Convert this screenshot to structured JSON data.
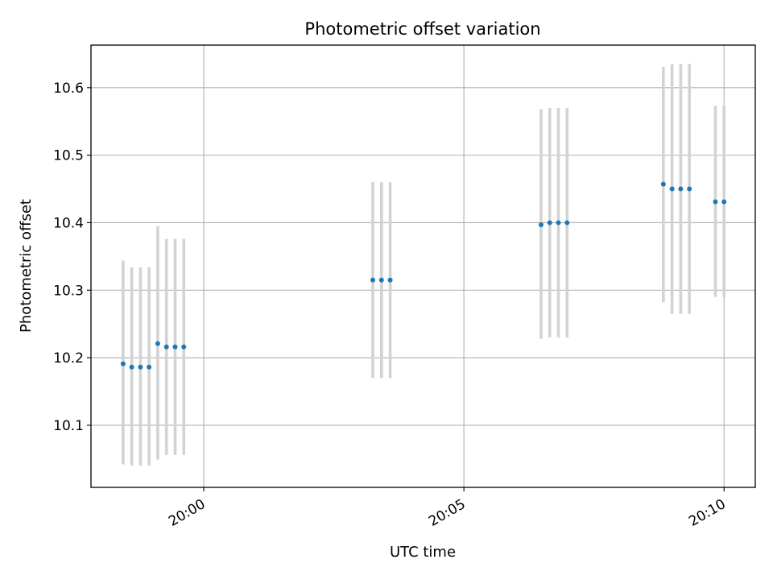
{
  "chart_data": {
    "type": "scatter",
    "title": "Photometric offset variation",
    "xlabel": "UTC time",
    "ylabel": "Photometric offset",
    "x_unit": "minutes",
    "xlim": [
      "19:57:50",
      "20:10:36"
    ],
    "ylim": [
      10.008,
      10.663
    ],
    "x_ticks": [
      "20:00",
      "20:05",
      "20:10"
    ],
    "y_ticks": [
      10.1,
      10.2,
      10.3,
      10.4,
      10.5,
      10.6
    ],
    "y_tick_labels": [
      "10.1",
      "10.2",
      "10.3",
      "10.4",
      "10.5",
      "10.6"
    ],
    "grid": true,
    "point_color": "#1f77b4",
    "errorbar_color": "#d3d3d3",
    "points": [
      {
        "x": "19:58:27",
        "y": 10.191,
        "ylow": 10.042,
        "yhigh": 10.344
      },
      {
        "x": "19:58:37",
        "y": 10.186,
        "ylow": 10.04,
        "yhigh": 10.334
      },
      {
        "x": "19:58:47",
        "y": 10.186,
        "ylow": 10.04,
        "yhigh": 10.334
      },
      {
        "x": "19:58:57",
        "y": 10.186,
        "ylow": 10.04,
        "yhigh": 10.334
      },
      {
        "x": "19:59:07",
        "y": 10.221,
        "ylow": 10.049,
        "yhigh": 10.395
      },
      {
        "x": "19:59:17",
        "y": 10.216,
        "ylow": 10.056,
        "yhigh": 10.376
      },
      {
        "x": "19:59:27",
        "y": 10.216,
        "ylow": 10.056,
        "yhigh": 10.376
      },
      {
        "x": "19:59:37",
        "y": 10.216,
        "ylow": 10.056,
        "yhigh": 10.376
      },
      {
        "x": "20:03:15",
        "y": 10.315,
        "ylow": 10.17,
        "yhigh": 10.46
      },
      {
        "x": "20:03:25",
        "y": 10.315,
        "ylow": 10.17,
        "yhigh": 10.46
      },
      {
        "x": "20:03:35",
        "y": 10.315,
        "ylow": 10.17,
        "yhigh": 10.46
      },
      {
        "x": "20:06:29",
        "y": 10.397,
        "ylow": 10.228,
        "yhigh": 10.568
      },
      {
        "x": "20:06:39",
        "y": 10.4,
        "ylow": 10.23,
        "yhigh": 10.57
      },
      {
        "x": "20:06:49",
        "y": 10.4,
        "ylow": 10.23,
        "yhigh": 10.57
      },
      {
        "x": "20:06:59",
        "y": 10.4,
        "ylow": 10.23,
        "yhigh": 10.57
      },
      {
        "x": "20:08:50",
        "y": 10.457,
        "ylow": 10.282,
        "yhigh": 10.631
      },
      {
        "x": "20:09:00",
        "y": 10.45,
        "ylow": 10.265,
        "yhigh": 10.635
      },
      {
        "x": "20:09:10",
        "y": 10.45,
        "ylow": 10.265,
        "yhigh": 10.635
      },
      {
        "x": "20:09:20",
        "y": 10.45,
        "ylow": 10.265,
        "yhigh": 10.635
      },
      {
        "x": "20:09:50",
        "y": 10.431,
        "ylow": 10.29,
        "yhigh": 10.573
      },
      {
        "x": "20:10:00",
        "y": 10.431,
        "ylow": 10.29,
        "yhigh": 10.573
      }
    ]
  }
}
